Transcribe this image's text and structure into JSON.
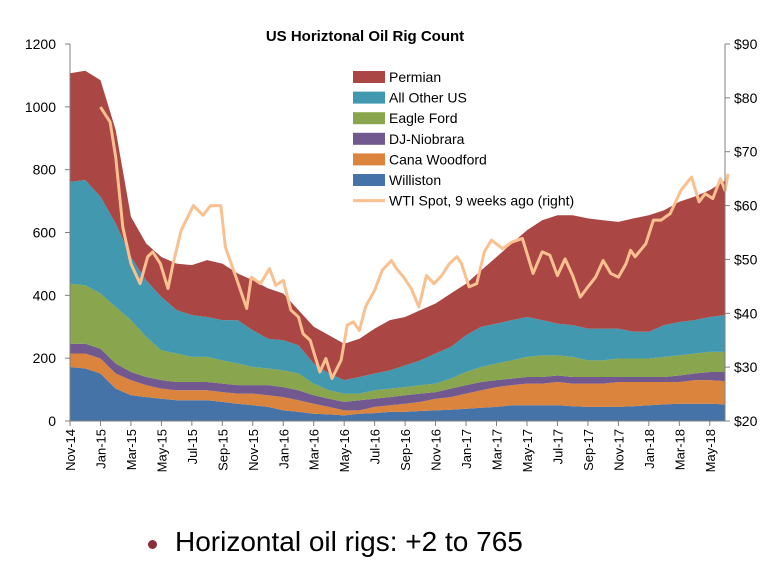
{
  "chart_data": {
    "type": "area",
    "stacked": true,
    "title": "US Horiztonal Oil Rig Count",
    "x": [
      "2014-11",
      "2014-12",
      "2015-01",
      "2015-02",
      "2015-03",
      "2015-04",
      "2015-05",
      "2015-06",
      "2015-07",
      "2015-08",
      "2015-09",
      "2015-10",
      "2015-11",
      "2015-12",
      "2016-01",
      "2016-02",
      "2016-03",
      "2016-04",
      "2016-05",
      "2016-06",
      "2016-07",
      "2016-08",
      "2016-09",
      "2016-10",
      "2016-11",
      "2016-12",
      "2017-01",
      "2017-02",
      "2017-03",
      "2017-04",
      "2017-05",
      "2017-06",
      "2017-07",
      "2017-08",
      "2017-09",
      "2017-10",
      "2017-11",
      "2017-12",
      "2018-01",
      "2018-02",
      "2018-03",
      "2018-04",
      "2018-05",
      "2018-06"
    ],
    "x_tick_labels": [
      "Nov-14",
      "Jan-15",
      "Mar-15",
      "May-15",
      "Jul-15",
      "Sep-15",
      "Nov-15",
      "Jan-16",
      "Mar-16",
      "May-16",
      "Jul-16",
      "Sep-16",
      "Nov-16",
      "Jan-17",
      "Mar-17",
      "May-17",
      "Jul-17",
      "Sep-17",
      "Nov-17",
      "Jan-18",
      "Mar-18",
      "May-18"
    ],
    "y_left": {
      "range": [
        0,
        1200
      ],
      "ticks": [
        "0",
        "200",
        "400",
        "600",
        "800",
        "1000",
        "1200"
      ]
    },
    "y_right": {
      "range": [
        20,
        90
      ],
      "ticks": [
        "$20",
        "$30",
        "$40",
        "$50",
        "$60",
        "$70",
        "$80",
        "$90"
      ]
    },
    "grid": false,
    "legend_placement": "top-center",
    "series": [
      {
        "name": "Williston",
        "color": "#4572A7",
        "values": [
          172,
          167,
          151,
          103,
          82,
          76,
          71,
          66,
          66,
          66,
          61,
          55,
          50,
          45,
          34,
          29,
          23,
          21,
          18,
          23,
          25,
          29,
          29,
          32,
          34,
          36,
          39,
          42,
          45,
          50,
          50,
          50,
          50,
          47,
          45,
          45,
          45,
          47,
          50,
          53,
          55,
          55,
          55,
          53
        ]
      },
      {
        "name": "Cana Woodford",
        "color": "#DB843D",
        "values": [
          43,
          48,
          48,
          48,
          48,
          38,
          32,
          32,
          32,
          32,
          31,
          32,
          37,
          37,
          42,
          37,
          32,
          24,
          16,
          11,
          20,
          21,
          26,
          29,
          37,
          40,
          48,
          56,
          63,
          64,
          69,
          69,
          74,
          72,
          74,
          74,
          79,
          77,
          74,
          71,
          69,
          75,
          75,
          74
        ]
      },
      {
        "name": "DJ-Niobrara",
        "color": "#71588F",
        "values": [
          31,
          31,
          31,
          32,
          26,
          26,
          27,
          26,
          26,
          26,
          27,
          27,
          27,
          32,
          32,
          32,
          27,
          26,
          27,
          32,
          26,
          26,
          27,
          26,
          21,
          27,
          27,
          26,
          22,
          21,
          21,
          21,
          21,
          21,
          21,
          21,
          16,
          16,
          16,
          16,
          21,
          21,
          26,
          29
        ]
      },
      {
        "name": "Eagle Ford",
        "color": "#89A54E",
        "values": [
          191,
          186,
          176,
          180,
          165,
          128,
          95,
          91,
          80,
          80,
          74,
          69,
          58,
          53,
          53,
          53,
          37,
          27,
          26,
          21,
          27,
          27,
          26,
          27,
          27,
          32,
          42,
          48,
          53,
          58,
          64,
          69,
          64,
          64,
          53,
          53,
          59,
          59,
          59,
          64,
          64,
          64,
          64,
          64
        ]
      },
      {
        "name": "All Other US",
        "color": "#4198AF",
        "values": [
          324,
          335,
          308,
          266,
          201,
          180,
          170,
          138,
          133,
          127,
          128,
          138,
          117,
          95,
          96,
          90,
          64,
          53,
          43,
          53,
          53,
          58,
          69,
          79,
          96,
          101,
          117,
          128,
          127,
          128,
          127,
          112,
          101,
          101,
          101,
          101,
          95,
          85,
          85,
          101,
          106,
          106,
          111,
          117
        ]
      },
      {
        "name": "Permian",
        "color": "#AA4643",
        "values": [
          346,
          348,
          371,
          297,
          128,
          117,
          127,
          148,
          159,
          181,
          180,
          149,
          159,
          160,
          149,
          112,
          117,
          122,
          116,
          122,
          143,
          160,
          154,
          160,
          159,
          170,
          164,
          180,
          212,
          244,
          276,
          318,
          345,
          350,
          351,
          345,
          340,
          361,
          371,
          366,
          383,
          393,
          404,
          428
        ]
      }
    ],
    "line_series": {
      "name": "WTI Spot, 9 weeks ago (right)",
      "axis": "right",
      "color": "#FAC090",
      "points": [
        [
          "2015-01-01",
          78.3
        ],
        [
          "2015-01-20",
          75.5
        ],
        [
          "2015-02-01",
          69
        ],
        [
          "2015-02-15",
          56
        ],
        [
          "2015-03-01",
          49.2
        ],
        [
          "2015-03-19",
          45.5
        ],
        [
          "2015-04-04",
          50.5
        ],
        [
          "2015-04-14",
          51.4
        ],
        [
          "2015-04-29",
          49.2
        ],
        [
          "2015-05-14",
          44.6
        ],
        [
          "2015-05-24",
          49.2
        ],
        [
          "2015-06-10",
          55.4
        ],
        [
          "2015-07-04",
          60
        ],
        [
          "2015-07-23",
          58.2
        ],
        [
          "2015-08-08",
          60
        ],
        [
          "2015-08-28",
          60
        ],
        [
          "2015-09-07",
          52.3
        ],
        [
          "2015-09-28",
          46.7
        ],
        [
          "2015-10-19",
          40.9
        ],
        [
          "2015-10-28",
          46.7
        ],
        [
          "2015-11-16",
          45.5
        ],
        [
          "2015-12-04",
          48.3
        ],
        [
          "2015-12-16",
          45.2
        ],
        [
          "2016-01-01",
          46.1
        ],
        [
          "2016-01-16",
          40.6
        ],
        [
          "2016-02-01",
          39.3
        ],
        [
          "2016-02-10",
          36.2
        ],
        [
          "2016-02-24",
          35
        ],
        [
          "2016-03-13",
          29.1
        ],
        [
          "2016-03-25",
          31.6
        ],
        [
          "2016-04-07",
          27.9
        ],
        [
          "2016-04-25",
          31.3
        ],
        [
          "2016-05-07",
          37.8
        ],
        [
          "2016-05-19",
          38.4
        ],
        [
          "2016-06-01",
          36.8
        ],
        [
          "2016-06-13",
          41.2
        ],
        [
          "2016-07-01",
          44.3
        ],
        [
          "2016-07-16",
          48
        ],
        [
          "2016-08-04",
          49.8
        ],
        [
          "2016-08-14",
          48.3
        ],
        [
          "2016-08-28",
          46.7
        ],
        [
          "2016-09-13",
          44.6
        ],
        [
          "2016-09-28",
          41.2
        ],
        [
          "2016-10-13",
          47
        ],
        [
          "2016-10-28",
          45.5
        ],
        [
          "2016-11-13",
          47
        ],
        [
          "2016-11-28",
          49.2
        ],
        [
          "2016-12-13",
          50.5
        ],
        [
          "2016-12-22",
          49.2
        ],
        [
          "2017-01-07",
          44.9
        ],
        [
          "2017-01-22",
          45.5
        ],
        [
          "2017-02-07",
          51.4
        ],
        [
          "2017-02-21",
          53.6
        ],
        [
          "2017-03-13",
          52
        ],
        [
          "2017-04-01",
          53.2
        ],
        [
          "2017-04-22",
          53.9
        ],
        [
          "2017-05-13",
          47.4
        ],
        [
          "2017-06-01",
          51.4
        ],
        [
          "2017-06-16",
          50.8
        ],
        [
          "2017-07-01",
          47
        ],
        [
          "2017-07-16",
          50.1
        ],
        [
          "2017-08-01",
          47
        ],
        [
          "2017-08-16",
          43
        ],
        [
          "2017-09-01",
          44.9
        ],
        [
          "2017-09-16",
          46.7
        ],
        [
          "2017-10-01",
          49.8
        ],
        [
          "2017-10-16",
          47.4
        ],
        [
          "2017-11-01",
          46.7
        ],
        [
          "2017-11-16",
          49.2
        ],
        [
          "2017-11-25",
          51.7
        ],
        [
          "2017-12-04",
          50.5
        ],
        [
          "2017-12-25",
          52.9
        ],
        [
          "2018-01-10",
          57.3
        ],
        [
          "2018-01-25",
          57.3
        ],
        [
          "2018-02-13",
          58.5
        ],
        [
          "2018-03-04",
          62.8
        ],
        [
          "2018-03-25",
          65.3
        ],
        [
          "2018-04-10",
          60.7
        ],
        [
          "2018-04-22",
          62.2
        ],
        [
          "2018-05-07",
          61.3
        ],
        [
          "2018-05-22",
          65
        ],
        [
          "2018-06-01",
          62.8
        ],
        [
          "2018-06-07",
          65.9
        ]
      ]
    },
    "legend_order": [
      "Permian",
      "All Other US",
      "Eagle Ford",
      "DJ-Niobrara",
      "Cana Woodford",
      "Williston",
      "WTI Spot, 9 weeks ago (right)"
    ]
  },
  "caption": {
    "bullet_color": "#8B2E3A",
    "text": "Horizontal oil rigs: +2 to 765"
  }
}
